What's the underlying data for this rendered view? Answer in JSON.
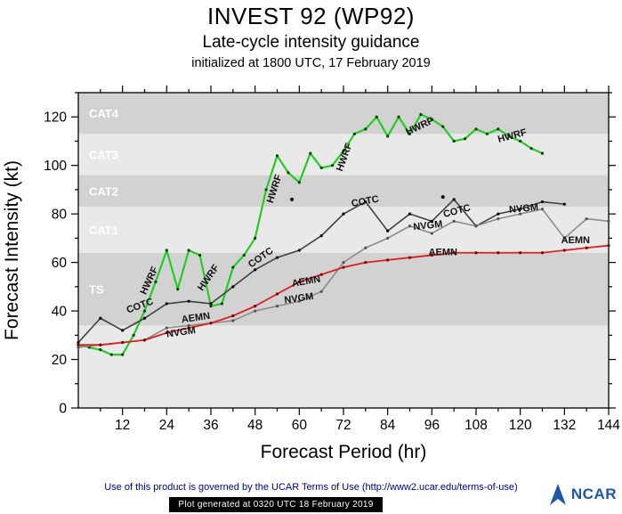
{
  "title": "INVEST 92 (WP92)",
  "subtitle": "Late-cycle intensity guidance",
  "init_line": "initialized at 1800 UTC, 17 February 2019",
  "footer": {
    "terms": "Use of this product is governed by the UCAR Terms of Use (http://www2.ucar.edu/terms-of-use)",
    "generated": "Plot generated at 0320 UTC  18 February 2019",
    "logo": "NCAR"
  },
  "chart_data": {
    "type": "line",
    "title": "INVEST 92 (WP92)",
    "xlabel": "Forecast Period (hr)",
    "ylabel": "Forecast Intensity (kt)",
    "xlim": [
      0,
      144
    ],
    "ylim": [
      0,
      130
    ],
    "xticks": [
      12,
      24,
      36,
      48,
      60,
      72,
      84,
      96,
      108,
      120,
      132,
      144
    ],
    "yticks": [
      0,
      20,
      40,
      60,
      80,
      100,
      120
    ],
    "x_minor_step": 6,
    "y_minor_step": 10,
    "grid": false,
    "band_colors": {
      "base": "#e9e9e9",
      "dark": "#d2d2d2",
      "light": "#e9e9e9",
      "label": "#ffffff"
    },
    "bands": [
      {
        "label": "TS",
        "from": 34,
        "to": 64,
        "shade": "dark"
      },
      {
        "label": "CAT1",
        "from": 64,
        "to": 83,
        "shade": "light"
      },
      {
        "label": "CAT2",
        "from": 83,
        "to": 96,
        "shade": "dark"
      },
      {
        "label": "CAT3",
        "from": 96,
        "to": 113,
        "shade": "light"
      },
      {
        "label": "CAT4",
        "from": 113,
        "to": 130,
        "shade": "dark"
      }
    ],
    "series": [
      {
        "name": "HWRF",
        "color": "#22cc22",
        "marker_color": "#004400",
        "width": 2.2,
        "x0": 0,
        "dx": 3,
        "values": [
          26,
          25,
          24,
          22,
          22,
          30,
          40,
          52,
          65,
          49,
          65,
          63,
          42,
          43,
          58,
          63,
          70,
          90,
          104,
          97,
          93,
          105,
          99,
          100,
          106,
          113,
          115,
          120,
          112,
          120,
          113,
          121,
          119,
          116,
          110,
          111,
          115,
          113,
          115,
          112,
          110,
          107,
          105
        ]
      },
      {
        "name": "COTC",
        "color": "#404040",
        "marker_color": "#000000",
        "width": 1.6,
        "x0": 0,
        "dx": 6,
        "values": [
          27,
          37,
          32,
          37,
          43,
          44,
          43,
          50,
          57,
          62,
          65,
          71,
          80,
          85,
          73,
          80,
          77,
          86,
          75,
          80,
          82,
          85,
          84
        ]
      },
      {
        "name": "NVGM",
        "color": "#8c8c8c",
        "marker_color": "#555555",
        "width": 1.6,
        "x0": 0,
        "dx": 6,
        "values": [
          25,
          26,
          27,
          28,
          33,
          34,
          35,
          36,
          40,
          42,
          44,
          48,
          60,
          66,
          70,
          75,
          72,
          77,
          75,
          78,
          80,
          82,
          70,
          78,
          77
        ]
      },
      {
        "name": "AEMN",
        "color": "#dd2020",
        "marker_color": "#7a0000",
        "width": 1.8,
        "x0": 0,
        "dx": 6,
        "values": [
          26,
          26,
          27,
          28,
          31,
          33,
          35,
          38,
          42,
          47,
          52,
          55,
          58,
          60,
          61,
          62,
          63,
          64,
          64,
          64,
          64,
          64,
          65,
          66,
          67
        ]
      }
    ],
    "line_labels": [
      {
        "text": "HWRF",
        "x": 20,
        "y": 52,
        "angle": -65
      },
      {
        "text": "HWRF",
        "x": 36,
        "y": 53,
        "angle": -55
      },
      {
        "text": "HWRF",
        "x": 54,
        "y": 90,
        "angle": -72
      },
      {
        "text": "HWRF",
        "x": 73,
        "y": 103,
        "angle": -70
      },
      {
        "text": "HWRF",
        "x": 93,
        "y": 115,
        "angle": -25
      },
      {
        "text": "HWRF",
        "x": 118,
        "y": 111,
        "angle": -15
      },
      {
        "text": "COTC",
        "x": 17,
        "y": 41,
        "angle": -20
      },
      {
        "text": "COTC",
        "x": 50,
        "y": 61,
        "angle": -35
      },
      {
        "text": "COTC",
        "x": 78,
        "y": 84,
        "angle": -10
      },
      {
        "text": "COTC",
        "x": 103,
        "y": 80,
        "angle": -15
      },
      {
        "text": "NVGM",
        "x": 28,
        "y": 30,
        "angle": -8
      },
      {
        "text": "NVGM",
        "x": 60,
        "y": 44,
        "angle": -8
      },
      {
        "text": "NVGM",
        "x": 95,
        "y": 74,
        "angle": -6
      },
      {
        "text": "NVGM",
        "x": 121,
        "y": 81,
        "angle": -5
      },
      {
        "text": "AEMN",
        "x": 32,
        "y": 36,
        "angle": -8
      },
      {
        "text": "AEMN",
        "x": 62,
        "y": 51,
        "angle": -10
      },
      {
        "text": "AEMN",
        "x": 99,
        "y": 63,
        "angle": 0
      },
      {
        "text": "AEMN",
        "x": 135,
        "y": 68,
        "angle": 0
      }
    ],
    "extra_points": [
      {
        "x": 58,
        "y": 86
      },
      {
        "x": 99,
        "y": 87
      }
    ]
  }
}
